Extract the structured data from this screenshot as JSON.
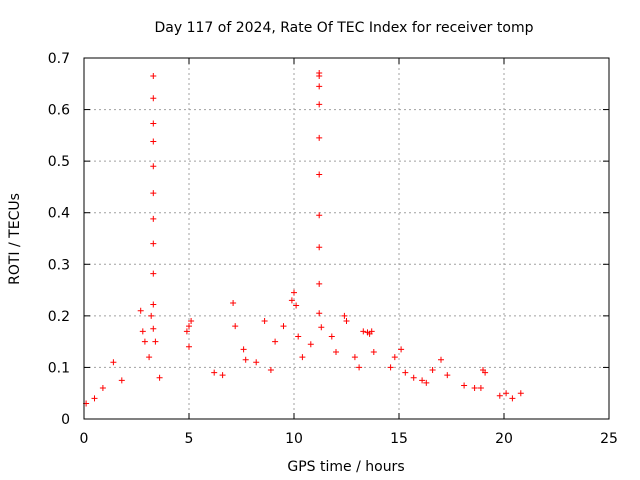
{
  "chart_data": {
    "type": "scatter",
    "title": "Day 117 of 2024, Rate Of TEC Index for receiver tomp",
    "xlabel": "GPS time / hours",
    "ylabel": "ROTI / TECUs",
    "xlim": [
      0,
      25
    ],
    "ylim": [
      0,
      0.7
    ],
    "x_ticks": [
      "0",
      "5",
      "10",
      "15",
      "20",
      "25"
    ],
    "y_ticks": [
      "0",
      "0.1",
      "0.2",
      "0.3",
      "0.4",
      "0.5",
      "0.6",
      "0.7"
    ],
    "grid": true,
    "marker": "+",
    "color": "#ff0000",
    "series": [
      {
        "x": [
          3.3,
          3.3,
          3.3,
          3.3,
          3.3,
          3.3,
          3.3,
          3.3,
          3.3,
          3.3,
          3.2,
          3.3,
          11.2,
          11.2,
          11.2,
          11.2,
          11.2,
          11.2,
          11.2,
          11.2,
          11.2,
          11.2,
          11.3,
          2.7,
          2.8,
          2.9,
          3.1,
          3.4,
          3.6,
          4.9,
          5.0,
          5.1,
          5.0,
          7.1,
          7.2,
          7.6,
          7.7,
          8.6,
          9.1,
          9.5,
          9.9,
          10.0,
          10.1,
          10.2,
          10.4,
          11.8,
          12.0,
          12.4,
          12.5,
          12.9,
          13.3,
          13.5,
          13.6,
          13.7,
          13.8,
          14.6,
          14.8,
          15.1,
          15.3,
          16.1,
          16.6,
          17.0,
          17.3,
          18.1,
          18.6,
          19.0,
          19.1,
          19.8,
          20.4,
          20.8,
          1.4,
          1.8,
          0.9,
          0.5,
          0.1,
          6.2,
          6.6,
          8.2,
          8.9,
          10.8,
          13.1,
          15.7,
          16.3,
          18.9,
          20.1
        ],
        "y": [
          0.665,
          0.622,
          0.573,
          0.538,
          0.49,
          0.438,
          0.388,
          0.34,
          0.282,
          0.222,
          0.2,
          0.175,
          0.671,
          0.665,
          0.645,
          0.61,
          0.545,
          0.474,
          0.395,
          0.333,
          0.262,
          0.205,
          0.178,
          0.21,
          0.17,
          0.15,
          0.12,
          0.15,
          0.08,
          0.17,
          0.18,
          0.19,
          0.14,
          0.225,
          0.18,
          0.135,
          0.115,
          0.19,
          0.15,
          0.18,
          0.23,
          0.245,
          0.22,
          0.16,
          0.12,
          0.16,
          0.13,
          0.2,
          0.19,
          0.12,
          0.17,
          0.168,
          0.165,
          0.17,
          0.13,
          0.1,
          0.12,
          0.135,
          0.09,
          0.075,
          0.095,
          0.115,
          0.085,
          0.065,
          0.06,
          0.095,
          0.09,
          0.045,
          0.04,
          0.05,
          0.11,
          0.075,
          0.06,
          0.04,
          0.03,
          0.09,
          0.085,
          0.11,
          0.095,
          0.145,
          0.1,
          0.08,
          0.07,
          0.06,
          0.05
        ]
      }
    ]
  }
}
